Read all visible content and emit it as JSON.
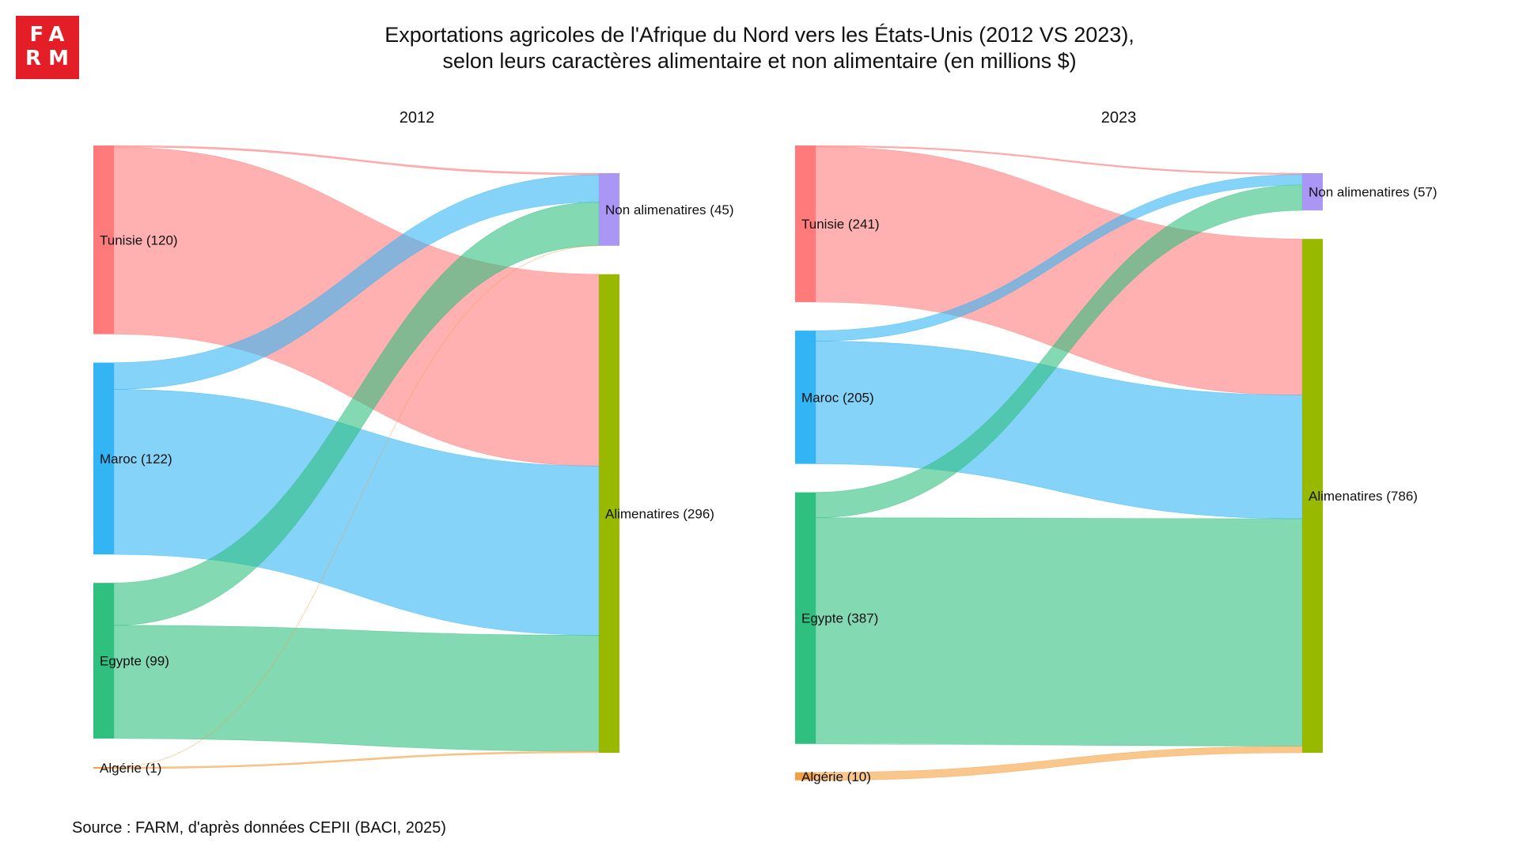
{
  "logo": {
    "line1": "FA",
    "line2": "RM"
  },
  "title_line1": "Exportations agricoles de l'Afrique du Nord vers les États-Unis (2012 VS 2023),",
  "title_line2": "selon leurs caractères alimentaire et non alimentaire (en millions $)",
  "source": "Source : FARM, d'après données CEPII (BACI, 2025)",
  "colors": {
    "Tunisie": "#ff7b7b",
    "Maroc": "#33b5f5",
    "Egypte": "#2fc07f",
    "Algérie": "#f5a040",
    "Non alimenatires": "#a996f5",
    "Alimenatires": "#99b800"
  },
  "chart_data": [
    {
      "type": "sankey",
      "title": "2012",
      "sources": [
        "Tunisie",
        "Maroc",
        "Egypte",
        "Algérie"
      ],
      "targets": [
        "Non alimenatires",
        "Alimenatires"
      ],
      "node_labels": {
        "Tunisie": "Tunisie (120)",
        "Maroc": "Maroc (122)",
        "Egypte": "Egypte (99)",
        "Algérie": "Algérie (1)",
        "Non alimenatires": "Non alimenatires (45)",
        "Alimenatires": "Alimenatires (296)"
      },
      "flows": [
        {
          "source": "Tunisie",
          "target": "Non alimenatires",
          "value": 1
        },
        {
          "source": "Tunisie",
          "target": "Alimenatires",
          "value": 119
        },
        {
          "source": "Maroc",
          "target": "Non alimenatires",
          "value": 17
        },
        {
          "source": "Maroc",
          "target": "Alimenatires",
          "value": 105
        },
        {
          "source": "Egypte",
          "target": "Non alimenatires",
          "value": 27
        },
        {
          "source": "Egypte",
          "target": "Alimenatires",
          "value": 72
        },
        {
          "source": "Algérie",
          "target": "Non alimenatires",
          "value": 0.05
        },
        {
          "source": "Algérie",
          "target": "Alimenatires",
          "value": 0.95
        }
      ]
    },
    {
      "type": "sankey",
      "title": "2023",
      "sources": [
        "Tunisie",
        "Maroc",
        "Egypte",
        "Algérie"
      ],
      "targets": [
        "Non alimenatires",
        "Alimenatires"
      ],
      "node_labels": {
        "Tunisie": "Tunisie (241)",
        "Maroc": "Maroc (205)",
        "Egypte": "Egypte (387)",
        "Algérie": "Algérie (10)",
        "Non alimenatires": "Non alimenatires (57)",
        "Alimenatires": "Alimenatires (786)"
      },
      "flows": [
        {
          "source": "Tunisie",
          "target": "Non alimenatires",
          "value": 2
        },
        {
          "source": "Tunisie",
          "target": "Alimenatires",
          "value": 239
        },
        {
          "source": "Maroc",
          "target": "Non alimenatires",
          "value": 16
        },
        {
          "source": "Maroc",
          "target": "Alimenatires",
          "value": 189
        },
        {
          "source": "Egypte",
          "target": "Non alimenatires",
          "value": 39
        },
        {
          "source": "Egypte",
          "target": "Alimenatires",
          "value": 348
        },
        {
          "source": "Algérie",
          "target": "Alimenatires",
          "value": 10
        }
      ]
    }
  ]
}
